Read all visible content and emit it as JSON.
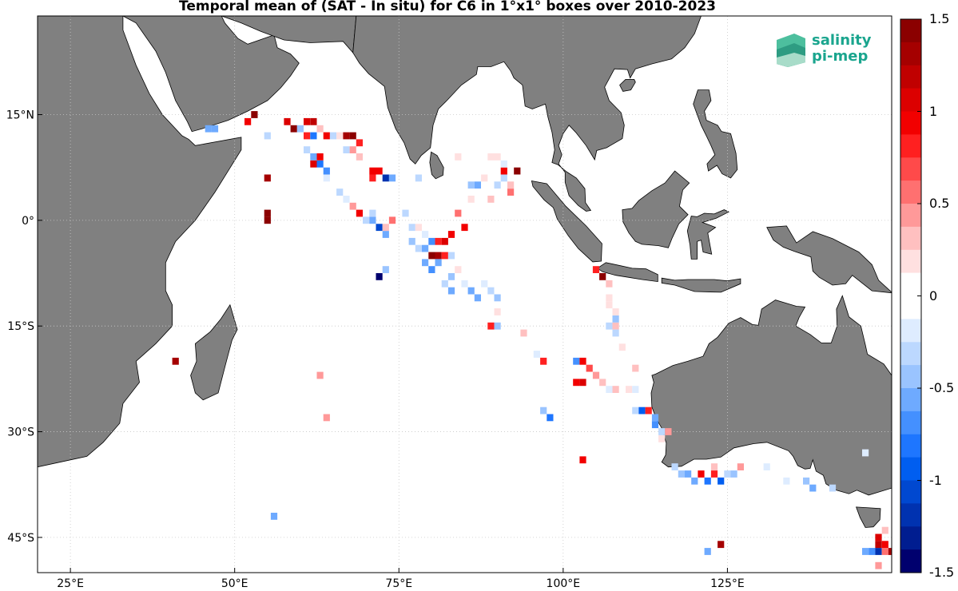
{
  "title": "Temporal mean of (SAT - In situ) for C6 in 1°x1° boxes over 2010-2023",
  "logo": {
    "line1": "salinity",
    "line2": "pi-mep"
  },
  "map": {
    "lon_range": [
      20,
      150
    ],
    "lat_range": [
      -50,
      29
    ],
    "lon_ticks": [
      {
        "v": 25,
        "label": "25°E"
      },
      {
        "v": 50,
        "label": "50°E"
      },
      {
        "v": 75,
        "label": "75°E"
      },
      {
        "v": 100,
        "label": "100°E"
      },
      {
        "v": 125,
        "label": "125°E"
      }
    ],
    "lat_ticks": [
      {
        "v": 15,
        "label": "15°N"
      },
      {
        "v": 0,
        "label": "0°"
      },
      {
        "v": -15,
        "label": "15°S"
      },
      {
        "v": -30,
        "label": "30°S"
      },
      {
        "v": -45,
        "label": "45°S"
      }
    ],
    "land_color": "#808080",
    "grid": "dotted"
  },
  "colorbar": {
    "min": -1.5,
    "max": 1.5,
    "tick_labels": [
      "1.5",
      "1",
      "0.5",
      "0",
      "-0.5",
      "-1",
      "-1.5"
    ],
    "colors": [
      "#8b0000",
      "#a50000",
      "#c00000",
      "#dc0000",
      "#f20000",
      "#ff2020",
      "#ff4a4a",
      "#ff7070",
      "#ff9999",
      "#ffc0c0",
      "#ffe0e0",
      "#ffffff",
      "#ffffff",
      "#deecff",
      "#bcd8ff",
      "#9ac4ff",
      "#6eaaff",
      "#4490ff",
      "#1e76ff",
      "#005ef0",
      "#0048d0",
      "#0032b0",
      "#001d90",
      "#00006e"
    ]
  },
  "chart_data": {
    "type": "heatmap",
    "cell_size_deg": 1,
    "value_units": "SAT - In situ",
    "cells": [
      [
        46,
        13,
        -0.6
      ],
      [
        47,
        13,
        -0.6
      ],
      [
        52,
        14,
        1.0
      ],
      [
        53,
        15,
        1.4
      ],
      [
        55,
        12,
        -0.3
      ],
      [
        58,
        14,
        1.1
      ],
      [
        59,
        13,
        1.5
      ],
      [
        60,
        13,
        -0.4
      ],
      [
        61,
        14,
        1.1
      ],
      [
        62,
        14,
        1.2
      ],
      [
        61,
        12,
        0.8
      ],
      [
        62,
        12,
        -0.8
      ],
      [
        63,
        13,
        0.3
      ],
      [
        64,
        12,
        1.0
      ],
      [
        65,
        12,
        -0.3
      ],
      [
        66,
        12,
        0.2
      ],
      [
        67,
        12,
        1.3
      ],
      [
        68,
        12,
        1.4
      ],
      [
        69,
        11,
        0.8
      ],
      [
        68,
        10,
        0.4
      ],
      [
        67,
        10,
        -0.3
      ],
      [
        69,
        9,
        0.3
      ],
      [
        61,
        10,
        -0.3
      ],
      [
        62,
        9,
        -0.5
      ],
      [
        63,
        8,
        -0.8
      ],
      [
        64,
        7,
        -0.7
      ],
      [
        64,
        6,
        -0.2
      ],
      [
        65,
        5,
        -0.1
      ],
      [
        66,
        4,
        -0.3
      ],
      [
        67,
        3,
        -0.2
      ],
      [
        68,
        2,
        0.5
      ],
      [
        69,
        1,
        1.0
      ],
      [
        70,
        0,
        -0.3
      ],
      [
        71,
        0,
        -0.6
      ],
      [
        72,
        -1,
        -1.0
      ],
      [
        73,
        -2,
        -0.5
      ],
      [
        73,
        -1,
        0.3
      ],
      [
        74,
        0,
        0.6
      ],
      [
        76,
        1,
        -0.3
      ],
      [
        77,
        -1,
        -0.3
      ],
      [
        78,
        -1,
        0.2
      ],
      [
        79,
        -2,
        -0.2
      ],
      [
        80,
        -3,
        -0.7
      ],
      [
        81,
        -3,
        0.8
      ],
      [
        82,
        -3,
        1.1
      ],
      [
        83,
        -2,
        0.9
      ],
      [
        85,
        -1,
        1.0
      ],
      [
        79,
        -4,
        -0.5
      ],
      [
        80,
        -5,
        1.4
      ],
      [
        81,
        -5,
        1.3
      ],
      [
        82,
        -5,
        0.8
      ],
      [
        83,
        -5,
        -0.3
      ],
      [
        77,
        -3,
        -0.4
      ],
      [
        78,
        -4,
        -0.3
      ],
      [
        79,
        -6,
        -0.6
      ],
      [
        80,
        -7,
        -0.7
      ],
      [
        81,
        -6,
        -0.5
      ],
      [
        82,
        -9,
        -0.3
      ],
      [
        83,
        -8,
        -0.4
      ],
      [
        83,
        -10,
        -0.5
      ],
      [
        85,
        -9,
        -0.2
      ],
      [
        86,
        -10,
        -0.6
      ],
      [
        87,
        -11,
        -0.5
      ],
      [
        88,
        -9,
        -0.2
      ],
      [
        89,
        -10,
        -0.3
      ],
      [
        84,
        -7,
        0.2
      ],
      [
        90,
        -11,
        -0.4
      ],
      [
        73,
        -7,
        -0.4
      ],
      [
        72,
        -8,
        -1.4
      ],
      [
        71,
        6,
        0.8
      ],
      [
        71,
        7,
        1.0
      ],
      [
        72,
        7,
        1.0
      ],
      [
        73,
        6,
        -1.2
      ],
      [
        74,
        6,
        -0.5
      ],
      [
        55,
        6,
        1.3
      ],
      [
        55,
        0,
        1.4
      ],
      [
        55,
        1,
        1.4
      ],
      [
        62,
        8,
        1.1
      ],
      [
        63,
        9,
        0.9
      ],
      [
        71,
        1,
        -0.3
      ],
      [
        93,
        7,
        1.4
      ],
      [
        91,
        7,
        0.9
      ],
      [
        92,
        5,
        0.3
      ],
      [
        92,
        4,
        0.6
      ],
      [
        89,
        3,
        0.3
      ],
      [
        90,
        5,
        -0.3
      ],
      [
        91,
        6,
        -0.3
      ],
      [
        86,
        5,
        -0.4
      ],
      [
        87,
        5,
        -0.5
      ],
      [
        88,
        6,
        0.2
      ],
      [
        89,
        9,
        0.2
      ],
      [
        90,
        9,
        0.2
      ],
      [
        91,
        8,
        -0.2
      ],
      [
        84,
        9,
        0.2
      ],
      [
        78,
        6,
        -0.3
      ],
      [
        86,
        3,
        0.2
      ],
      [
        84,
        1,
        0.6
      ],
      [
        90,
        -13,
        0.2
      ],
      [
        90,
        -15,
        -0.4
      ],
      [
        89,
        -15,
        0.8
      ],
      [
        94,
        -16,
        0.3
      ],
      [
        96,
        -19,
        -0.2
      ],
      [
        97,
        -20,
        0.8
      ],
      [
        102,
        -20,
        -0.7
      ],
      [
        103,
        -20,
        0.9
      ],
      [
        102,
        -23,
        1.0
      ],
      [
        103,
        -23,
        1.1
      ],
      [
        104,
        -21,
        0.7
      ],
      [
        105,
        -22,
        0.5
      ],
      [
        106,
        -23,
        0.3
      ],
      [
        107,
        -24,
        -0.2
      ],
      [
        108,
        -24,
        0.3
      ],
      [
        110,
        -24,
        0.2
      ],
      [
        109,
        -23,
        0.1
      ],
      [
        111,
        -21,
        0.3
      ],
      [
        111,
        -24,
        -0.2
      ],
      [
        111,
        -27,
        -0.3
      ],
      [
        112,
        -27,
        -0.9
      ],
      [
        113,
        -27,
        0.8
      ],
      [
        114,
        -28,
        -0.5
      ],
      [
        114,
        -29,
        -0.7
      ],
      [
        115,
        -30,
        -0.3
      ],
      [
        116,
        -30,
        0.4
      ],
      [
        115,
        -31,
        0.2
      ],
      [
        97,
        -27,
        -0.4
      ],
      [
        98,
        -28,
        -0.8
      ],
      [
        103,
        -34,
        1.0
      ],
      [
        108,
        -15,
        0.3
      ],
      [
        107,
        -15,
        -0.3
      ],
      [
        108,
        -14,
        -0.4
      ],
      [
        108,
        -13,
        0.2
      ],
      [
        107,
        -11,
        0.2
      ],
      [
        107,
        -12,
        0.2
      ],
      [
        107,
        -9,
        0.3
      ],
      [
        106,
        -8,
        1.4
      ],
      [
        105,
        -7,
        0.8
      ],
      [
        109,
        -18,
        0.2
      ],
      [
        108,
        -16,
        -0.3
      ],
      [
        117,
        -35,
        -0.3
      ],
      [
        118,
        -36,
        -0.4
      ],
      [
        119,
        -36,
        -0.5
      ],
      [
        120,
        -37,
        -0.6
      ],
      [
        121,
        -36,
        1.0
      ],
      [
        122,
        -37,
        -0.8
      ],
      [
        123,
        -36,
        0.8
      ],
      [
        123,
        -35,
        0.3
      ],
      [
        124,
        -37,
        -0.9
      ],
      [
        125,
        -36,
        -0.3
      ],
      [
        126,
        -36,
        -0.4
      ],
      [
        127,
        -35,
        0.4
      ],
      [
        131,
        -35,
        -0.2
      ],
      [
        134,
        -37,
        -0.2
      ],
      [
        137,
        -37,
        -0.4
      ],
      [
        138,
        -38,
        -0.5
      ],
      [
        141,
        -38,
        -0.3
      ],
      [
        146,
        -33,
        -0.2
      ],
      [
        41,
        -20,
        1.3
      ],
      [
        64,
        -28,
        0.4
      ],
      [
        63,
        -22,
        0.4
      ],
      [
        56,
        -42,
        -0.6
      ],
      [
        122,
        -47,
        -0.6
      ],
      [
        124,
        -46,
        1.3
      ],
      [
        146,
        -47,
        -0.5
      ],
      [
        147,
        -47,
        -0.7
      ],
      [
        148,
        -47,
        -1.2
      ],
      [
        149,
        -47,
        0.6
      ],
      [
        150,
        -47,
        1.3
      ],
      [
        148,
        -45,
        1.1
      ],
      [
        148,
        -46,
        1.2
      ],
      [
        149,
        -46,
        1.0
      ],
      [
        148,
        -49,
        0.5
      ],
      [
        149,
        -44,
        0.3
      ]
    ]
  }
}
